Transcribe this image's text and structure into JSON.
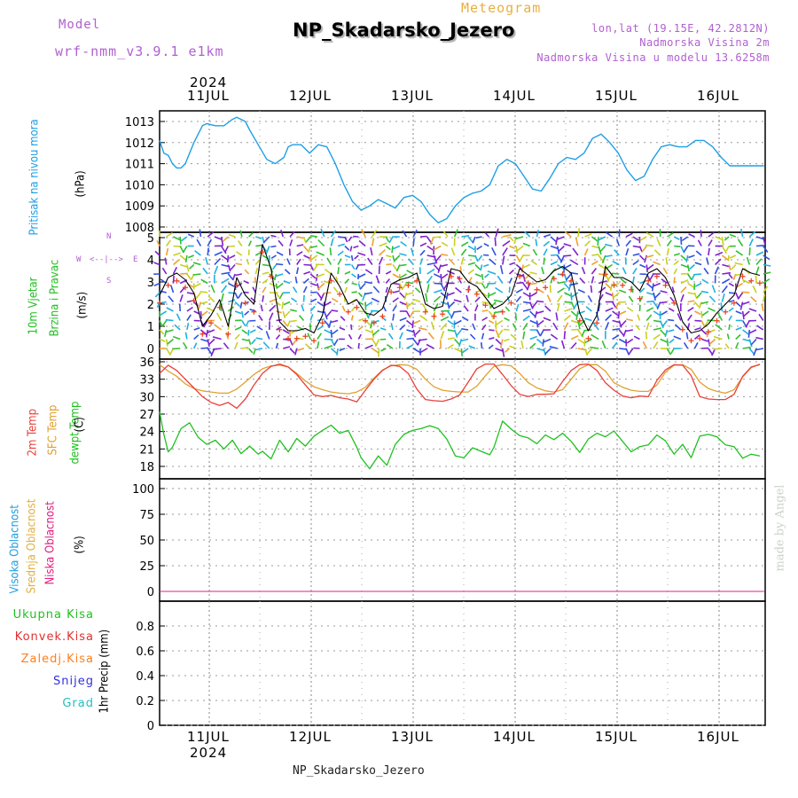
{
  "header": {
    "model_label": "Model",
    "model_name": "wrf-nmm_v3.9.1 e1km",
    "meteogram_label": "Meteogram",
    "station": "NP_Skadarsko_Jezero",
    "lonlat": "lon,lat (19.15E, 42.2812N)",
    "altitude": "Nadmorska Visina 2m",
    "model_altitude": "Nadmorska Visina u modelu 13.6258m",
    "year_top": "2024",
    "year_bottom": "2024",
    "footer_station": "NP_Skadarsko_Jezero",
    "watermark": "made by Angel"
  },
  "days": [
    "11JUL",
    "12JUL",
    "13JUL",
    "14JUL",
    "15JUL",
    "16JUL"
  ],
  "panel_labels": {
    "pressure": {
      "name": "Pritisak na nivou mora",
      "unit": "(hPa)"
    },
    "wind": {
      "name1": "10m Vjetar",
      "name2": "Brzina i Pravac",
      "unit": "(m/s)",
      "compass": {
        "w": "W",
        "e": "E",
        "n": "N",
        "s": "S",
        "glyph": "<--|-->"
      }
    },
    "temp": {
      "t2m": "2m Temp",
      "sfc": "SFC Temp",
      "dew": "dewpt Temp",
      "unit": "(C)"
    },
    "cloud": {
      "high": "Visoka Oblacnost",
      "mid": "Srednja Oblacnost",
      "low": "Niska Oblacnost",
      "unit": "(%)"
    },
    "precip": {
      "total": "Ukupna Kisa",
      "conv": "Konvek.Kisa",
      "frozen": "Zaledj.Kisa",
      "snow": "Snijeg",
      "graupel": "Grad",
      "unit": "1hr Precip (mm)"
    }
  },
  "colors": {
    "pressure": "#1e9fe6",
    "t2m": "#e8403a",
    "sfc": "#e0a030",
    "dew": "#20c020",
    "wind_line": "#000000",
    "wind_gust": "#e84020",
    "cloud_high": "#20a0e0",
    "cloud_mid": "#e0b040",
    "cloud_low": "#e02080",
    "precip_total": "#20c020",
    "precip_conv": "#e03030",
    "precip_frozen": "#ff8020",
    "snow": "#3030e0",
    "graupel": "#20c0c0",
    "title_purple": "#b060d0",
    "meteogram_orange": "#e8b040"
  },
  "chart_data": [
    {
      "type": "line",
      "title": "",
      "ylabel": "Pritisak na nivou mora (hPa)",
      "ylim": [
        1008,
        1013.5
      ],
      "yticks": [
        "1008",
        "1009",
        "1010",
        "1011",
        "1012",
        "1013"
      ],
      "x_hours_range": [
        0,
        141
      ],
      "series": [
        {
          "x": [
            0,
            1,
            2,
            3,
            4,
            5,
            6,
            8,
            10,
            11,
            13,
            15,
            17,
            18,
            20,
            21,
            23,
            25,
            27,
            29,
            30,
            31,
            33,
            35,
            37,
            39,
            41,
            43,
            45,
            47,
            49,
            51,
            53,
            55,
            57,
            59,
            61,
            63,
            65,
            67,
            69,
            71,
            73,
            75,
            77,
            79,
            81,
            83,
            85,
            87,
            89,
            91,
            93,
            95,
            97,
            99,
            101,
            103,
            105,
            107,
            109,
            111,
            113,
            115,
            117,
            119,
            121,
            123,
            125,
            127,
            129,
            131,
            133,
            135,
            137,
            139,
            141
          ],
          "values": [
            1012.1,
            1011.5,
            1011.4,
            1011.0,
            1010.8,
            1010.8,
            1011.0,
            1012.0,
            1012.8,
            1012.9,
            1012.8,
            1012.8,
            1013.1,
            1013.2,
            1013.0,
            1012.6,
            1011.9,
            1011.2,
            1011.0,
            1011.3,
            1011.8,
            1011.9,
            1011.9,
            1011.5,
            1011.9,
            1011.8,
            1011.0,
            1010.0,
            1009.2,
            1008.8,
            1009.0,
            1009.3,
            1009.1,
            1008.9,
            1009.4,
            1009.5,
            1009.2,
            1008.6,
            1008.2,
            1008.4,
            1009.0,
            1009.4,
            1009.6,
            1009.7,
            1010.0,
            1010.9,
            1011.2,
            1011.0,
            1010.4,
            1009.8,
            1009.7,
            1010.3,
            1011.0,
            1011.3,
            1011.2,
            1011.5,
            1012.2,
            1012.4,
            1012.0,
            1011.5,
            1010.7,
            1010.2,
            1010.4,
            1011.2,
            1011.8,
            1011.9,
            1011.8,
            1011.8,
            1012.1,
            1012.1,
            1011.8,
            1011.3,
            1010.9,
            1010.9,
            1010.9,
            1010.9,
            1010.9
          ],
          "name": ""
        }
      ]
    },
    {
      "type": "line",
      "title": "",
      "ylabel": "10m Vjetar Brzina i Pravac (m/s)",
      "ylim": [
        0,
        5.5
      ],
      "yticks": [
        "0",
        "1",
        "2",
        "3",
        "4",
        "5"
      ],
      "x_hours_range": [
        0,
        141
      ],
      "series": [
        {
          "x": [
            0,
            2,
            4,
            6,
            8,
            10,
            12,
            14,
            16,
            18,
            20,
            22,
            24,
            26,
            28,
            30,
            32,
            34,
            36,
            38,
            40,
            42,
            44,
            46,
            48,
            50,
            52,
            54,
            56,
            58,
            60,
            62,
            64,
            66,
            68,
            70,
            72,
            74,
            76,
            78,
            80,
            82,
            84,
            86,
            88,
            90,
            92,
            94,
            96,
            98,
            100,
            102,
            104,
            106,
            108,
            110,
            112,
            114,
            116,
            118,
            120,
            122,
            124,
            126,
            128,
            130,
            132,
            134,
            136,
            138,
            140
          ],
          "values": [
            2.4,
            3.2,
            3.4,
            3.1,
            2.5,
            1.0,
            1.5,
            2.2,
            1.0,
            3.2,
            2.4,
            2.0,
            4.7,
            3.6,
            1.2,
            0.8,
            0.8,
            0.9,
            0.7,
            1.5,
            3.4,
            2.8,
            2.0,
            2.2,
            1.6,
            1.5,
            1.8,
            2.9,
            3.1,
            3.2,
            3.4,
            2.0,
            1.8,
            1.9,
            3.6,
            3.5,
            3.0,
            2.8,
            2.3,
            1.8,
            2.0,
            2.4,
            3.6,
            3.3,
            3.0,
            3.1,
            3.5,
            3.7,
            3.4,
            1.6,
            0.8,
            1.5,
            3.7,
            3.2,
            3.2,
            3.0,
            2.6,
            3.4,
            3.6,
            3.2,
            2.4,
            1.2,
            0.7,
            0.8,
            1.1,
            1.6,
            2.0,
            2.4,
            3.6,
            3.4,
            3.3
          ],
          "name": ""
        }
      ]
    },
    {
      "type": "line",
      "title": "",
      "ylabel": "(C)",
      "ylim": [
        16.5,
        36.5
      ],
      "yticks": [
        "18",
        "21",
        "24",
        "27",
        "30",
        "33",
        "36"
      ],
      "x_hours_range": [
        0,
        141
      ],
      "series": [
        {
          "name": "2m Temp",
          "x": [
            0,
            2,
            4,
            6,
            8,
            10,
            12,
            14,
            16,
            18,
            20,
            22,
            24,
            26,
            28,
            30,
            32,
            34,
            36,
            38,
            40,
            42,
            44,
            46,
            48,
            50,
            52,
            54,
            56,
            58,
            60,
            62,
            64,
            66,
            68,
            70,
            72,
            74,
            76,
            78,
            80,
            82,
            84,
            86,
            88,
            90,
            92,
            94,
            96,
            98,
            100,
            102,
            104,
            106,
            108,
            110,
            112,
            114,
            116,
            118,
            120,
            122,
            124,
            126,
            128,
            130,
            132,
            134,
            136,
            138,
            140
          ],
          "values": [
            34,
            35.4,
            34.5,
            33,
            31.5,
            30,
            29,
            28.5,
            29,
            28,
            29.6,
            32,
            34,
            35.2,
            35.6,
            35.1,
            33.8,
            32,
            30.3,
            30,
            30.2,
            29.8,
            29.6,
            29.1,
            31.1,
            33,
            34.5,
            35.4,
            35.2,
            34,
            31.3,
            29.5,
            29.3,
            29.2,
            29.6,
            30.3,
            32.5,
            34.8,
            35.6,
            35.6,
            33.8,
            31.9,
            30.4,
            30,
            30.4,
            30.4,
            30.5,
            32.6,
            34.5,
            35.5,
            35.6,
            34.5,
            32.4,
            31.1,
            30.1,
            29.8,
            30.1,
            30,
            32.8,
            34.6,
            35.5,
            35.4,
            33.6,
            30,
            29.6,
            29.5,
            29.5,
            30.4,
            33.5,
            35.1,
            35.5
          ]
        },
        {
          "name": "SFC Temp",
          "x": [
            0,
            2,
            4,
            6,
            8,
            10,
            12,
            14,
            16,
            18,
            20,
            22,
            24,
            26,
            28,
            30,
            32,
            34,
            36,
            38,
            40,
            42,
            44,
            46,
            48,
            50,
            52,
            54,
            56,
            58,
            60,
            62,
            64,
            66,
            68,
            70,
            72,
            74,
            76,
            78,
            80,
            82,
            84,
            86,
            88,
            90,
            92,
            94,
            96,
            98,
            100,
            102,
            104,
            106,
            108,
            110,
            112,
            114,
            116,
            118,
            120,
            122,
            124,
            126,
            128,
            130,
            132,
            134,
            136,
            138,
            140
          ],
          "values": [
            35.5,
            34.4,
            33.5,
            32.2,
            31.4,
            31.0,
            30.8,
            30.6,
            30.6,
            31.3,
            32.5,
            33.8,
            34.8,
            35.3,
            35.4,
            35.1,
            34.0,
            32.7,
            31.7,
            31.2,
            30.8,
            30.6,
            30.5,
            30.8,
            31.6,
            33.2,
            34.6,
            35.3,
            35.5,
            35.4,
            34.7,
            33.0,
            31.7,
            31.1,
            30.9,
            30.8,
            30.8,
            31.8,
            33.6,
            35.2,
            35.5,
            35.3,
            34.0,
            32.4,
            31.5,
            31.0,
            30.8,
            31.2,
            33.0,
            34.8,
            35.5,
            35.5,
            34.4,
            32.4,
            31.6,
            31.1,
            30.9,
            30.9,
            32.0,
            34.2,
            35.4,
            35.5,
            34.7,
            32.5,
            31.4,
            30.9,
            30.6,
            31.2,
            33.4,
            35.0,
            35.6
          ]
        },
        {
          "name": "dewpt Temp",
          "x": [
            0,
            1,
            2,
            3,
            5,
            7,
            9,
            11,
            13,
            15,
            17,
            19,
            21,
            23,
            24,
            26,
            28,
            30,
            32,
            34,
            36,
            38,
            40,
            42,
            44,
            46,
            47,
            49,
            51,
            53,
            55,
            57,
            59,
            61,
            63,
            65,
            67,
            69,
            71,
            73,
            75,
            77,
            78,
            80,
            82,
            84,
            86,
            88,
            90,
            92,
            94,
            96,
            98,
            100,
            102,
            104,
            106,
            108,
            110,
            112,
            114,
            116,
            118,
            120,
            122,
            124,
            126,
            128,
            130,
            132,
            134,
            136,
            138,
            140
          ],
          "values": [
            27.4,
            23.5,
            20.5,
            21.3,
            24.5,
            25.5,
            23,
            21.8,
            22.5,
            21,
            22.5,
            20.2,
            21.5,
            20.1,
            20.6,
            19.3,
            22.5,
            20.5,
            22.8,
            21.5,
            23.2,
            24.2,
            25.1,
            23.7,
            24.2,
            21.3,
            19.5,
            17.6,
            19.8,
            18.2,
            21.8,
            23.5,
            24.2,
            24.5,
            25,
            24.5,
            22.7,
            19.8,
            19.5,
            21.2,
            20.6,
            20,
            21.3,
            25.8,
            24.4,
            23.3,
            22.9,
            21.9,
            23.4,
            22.6,
            23.7,
            22.3,
            20.4,
            22.7,
            23.7,
            23.1,
            24.1,
            22.3,
            20.5,
            21.4,
            21.7,
            23.4,
            22.4,
            20.1,
            21.8,
            19.5,
            23.2,
            23.5,
            23.1,
            21.7,
            21.4,
            19.4,
            20.1,
            19.8
          ]
        }
      ]
    },
    {
      "type": "line",
      "title": "",
      "ylabel": "(%)",
      "ylim": [
        0,
        105
      ],
      "yticks": [
        "0",
        "25",
        "50",
        "75",
        "100"
      ],
      "x_hours_range": [
        0,
        141
      ],
      "series": [
        {
          "name": "Visoka Oblacnost",
          "x": [
            0,
            141
          ],
          "values": [
            0,
            0
          ]
        },
        {
          "name": "Srednja Oblacnost",
          "x": [
            0,
            141
          ],
          "values": [
            0,
            0
          ]
        },
        {
          "name": "Niska Oblacnost",
          "x": [
            0,
            141
          ],
          "values": [
            0,
            0
          ]
        }
      ]
    },
    {
      "type": "bar",
      "title": "",
      "ylabel": "1hr Precip (mm)",
      "ylim": [
        0,
        1.0
      ],
      "yticks": [
        "0",
        "0.2",
        "0.4",
        "0.6",
        "0.8"
      ],
      "x_hours_range": [
        0,
        141
      ],
      "series": [
        {
          "name": "Ukupna Kisa",
          "x": [],
          "values": []
        },
        {
          "name": "Konvek.Kisa",
          "x": [],
          "values": []
        },
        {
          "name": "Zaledj.Kisa",
          "x": [],
          "values": []
        },
        {
          "name": "Snijeg",
          "x": [],
          "values": []
        },
        {
          "name": "Grad",
          "x": [],
          "values": []
        }
      ]
    }
  ]
}
